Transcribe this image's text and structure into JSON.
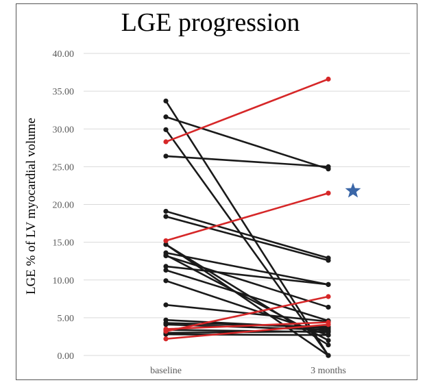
{
  "chart_data": {
    "type": "line",
    "title": "LGE progression",
    "xlabel": "",
    "ylabel": "LGE % of LV myocardial volume",
    "categories": [
      "baseline",
      "3 months"
    ],
    "ylim": [
      0,
      40
    ],
    "yticks": [
      "0.00",
      "5.00",
      "10.00",
      "15.00",
      "20.00",
      "25.00",
      "30.00",
      "35.00",
      "40.00"
    ],
    "grid": true,
    "legend": "none",
    "colors": {
      "black_series": "#1a1a1a",
      "red_series": "#d62728",
      "star": "#3a66a7",
      "grid": "#d9d9d9",
      "tick_text": "#595959"
    },
    "annotation": {
      "type": "star-icon",
      "y": 21.8
    },
    "series": [
      {
        "color": "red",
        "values": [
          28.3,
          36.6
        ]
      },
      {
        "color": "red",
        "values": [
          15.2,
          21.5
        ]
      },
      {
        "color": "red",
        "values": [
          3.2,
          7.8
        ]
      },
      {
        "color": "red",
        "values": [
          3.5,
          4.4
        ]
      },
      {
        "color": "red",
        "values": [
          2.2,
          4.1
        ]
      },
      {
        "color": "black",
        "values": [
          33.7,
          0.0
        ]
      },
      {
        "color": "black",
        "values": [
          31.6,
          24.7
        ]
      },
      {
        "color": "black",
        "values": [
          29.9,
          0.0
        ]
      },
      {
        "color": "black",
        "values": [
          26.4,
          25.0
        ]
      },
      {
        "color": "black",
        "values": [
          19.1,
          12.9
        ]
      },
      {
        "color": "black",
        "values": [
          18.4,
          12.6
        ]
      },
      {
        "color": "black",
        "values": [
          14.7,
          0.0
        ]
      },
      {
        "color": "black",
        "values": [
          14.7,
          1.4
        ]
      },
      {
        "color": "black",
        "values": [
          13.6,
          9.4
        ]
      },
      {
        "color": "black",
        "values": [
          13.2,
          6.4
        ]
      },
      {
        "color": "black",
        "values": [
          13.3,
          2.0
        ]
      },
      {
        "color": "black",
        "values": [
          11.8,
          9.4
        ]
      },
      {
        "color": "black",
        "values": [
          11.3,
          4.6
        ]
      },
      {
        "color": "black",
        "values": [
          9.9,
          2.7
        ]
      },
      {
        "color": "black",
        "values": [
          6.7,
          4.5
        ]
      },
      {
        "color": "black",
        "values": [
          4.7,
          3.6
        ]
      },
      {
        "color": "black",
        "values": [
          4.3,
          3.8
        ]
      },
      {
        "color": "black",
        "values": [
          4.1,
          3.4
        ]
      },
      {
        "color": "black",
        "values": [
          3.4,
          3.1
        ]
      },
      {
        "color": "black",
        "values": [
          3.0,
          3.2
        ]
      },
      {
        "color": "black",
        "values": [
          2.8,
          2.7
        ]
      }
    ]
  }
}
